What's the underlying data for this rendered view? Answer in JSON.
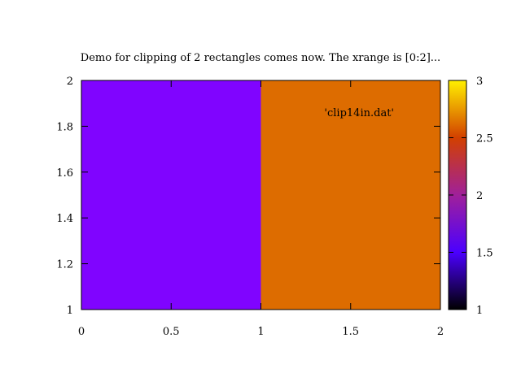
{
  "chart_data": {
    "type": "heatmap",
    "title": "Demo for clipping of 2 rectangles comes now. The xrange is [0:2]...",
    "xlabel": "",
    "ylabel": "",
    "xlim": [
      0,
      2
    ],
    "ylim": [
      1,
      2
    ],
    "x_ticks": [
      "0",
      "0.5",
      "1",
      "1.5",
      "2"
    ],
    "x_tick_values": [
      0,
      0.5,
      1,
      1.5,
      2
    ],
    "y_ticks": [
      "1",
      "1.2",
      "1.4",
      "1.6",
      "1.8",
      "2"
    ],
    "y_tick_values": [
      1,
      1.2,
      1.4,
      1.6,
      1.8,
      2
    ],
    "legend": {
      "entry": "'clip14in.dat'",
      "placement": "top-right"
    },
    "cells": [
      {
        "x0": 0,
        "x1": 1,
        "y0": 1,
        "y1": 2,
        "value": 1.5
      },
      {
        "x0": 1,
        "x1": 2,
        "y0": 1,
        "y1": 2,
        "value": 2.5
      }
    ],
    "colorbar": {
      "range": [
        1,
        3
      ],
      "ticks": [
        "1",
        "1.5",
        "2",
        "2.5",
        "3"
      ],
      "tick_values": [
        1,
        1.5,
        2,
        2.5,
        3
      ],
      "palette": "gnuplot-rgbformulae-7-5-15"
    },
    "grid": false
  }
}
